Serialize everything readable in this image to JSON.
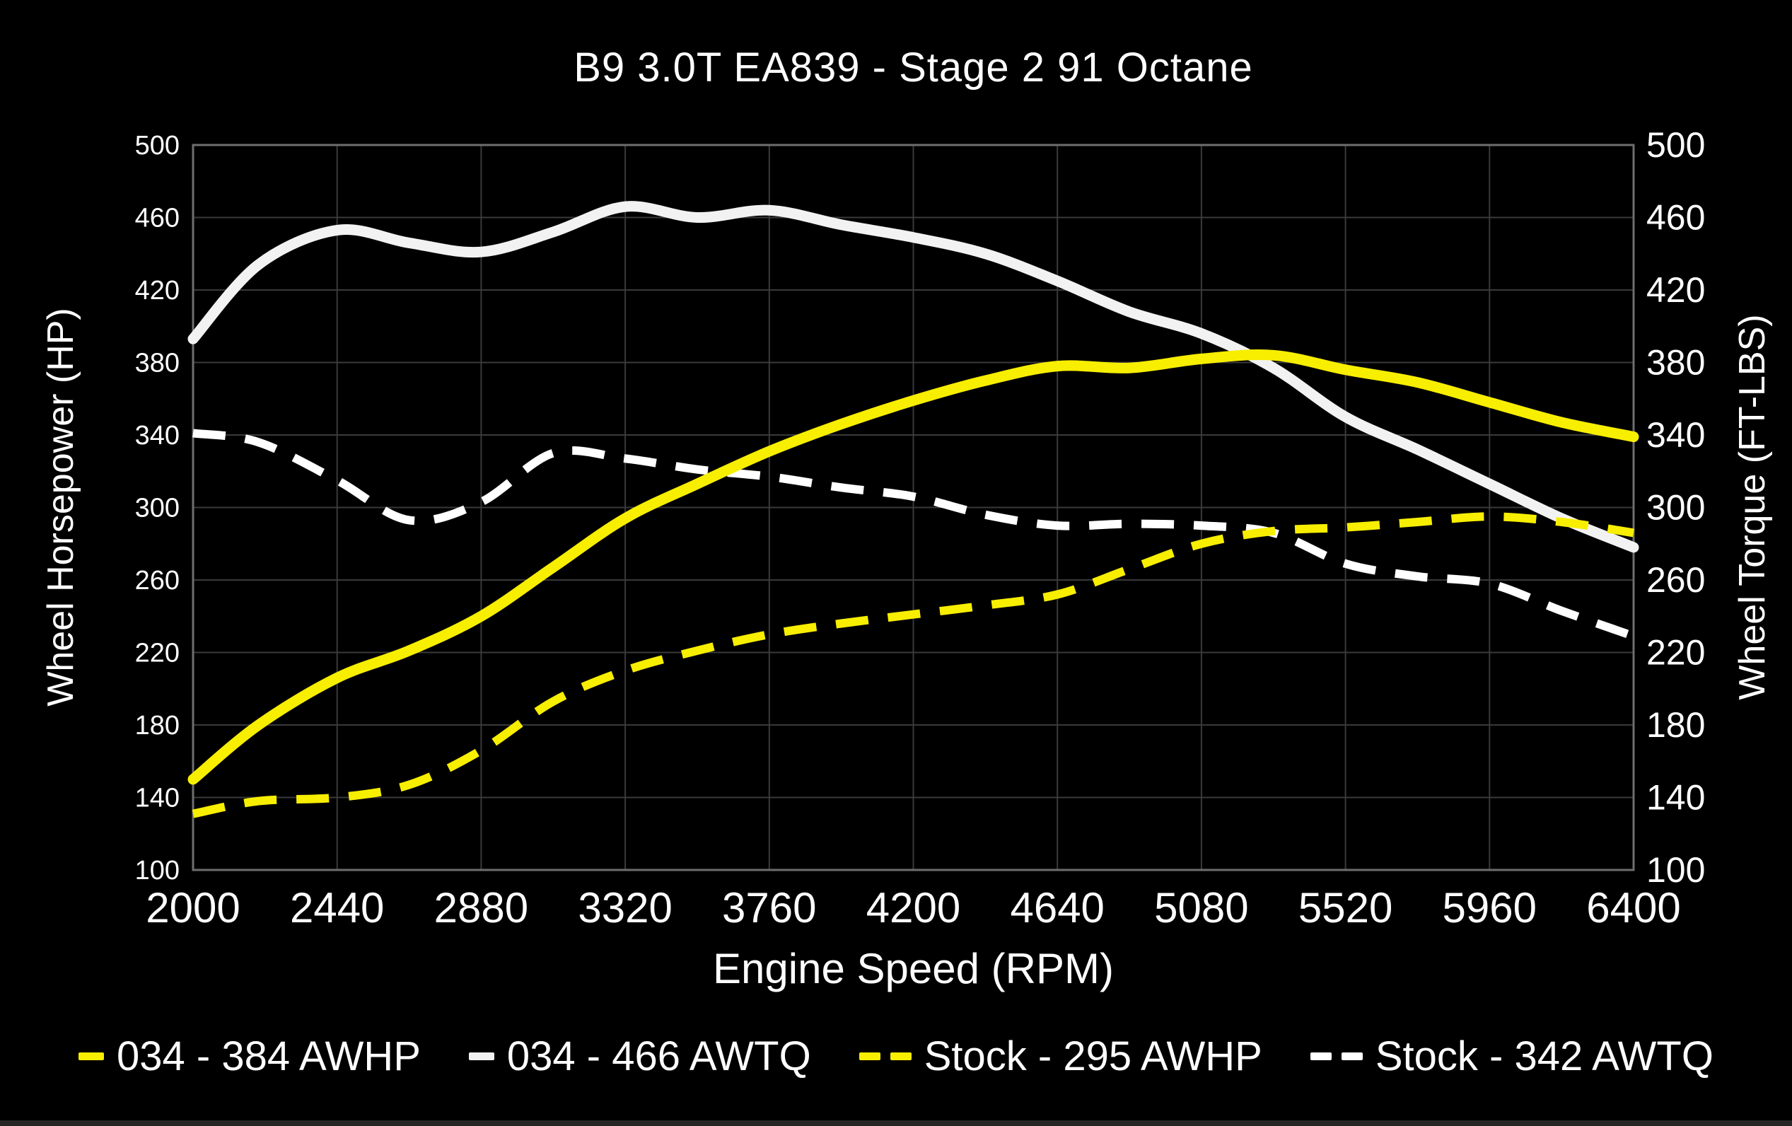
{
  "page": {
    "background": "#000000",
    "text_color": "#ffffff",
    "bottom_bar_color": "#262626"
  },
  "chart_data": {
    "type": "line",
    "title": "B9 3.0T EA839 - Stage 2 91 Octane",
    "xlabel": "Engine Speed (RPM)",
    "ylabel_left": "Wheel Horsepower (HP)",
    "ylabel_right": "Wheel Torque (FT-LBS)",
    "xlim": [
      2000,
      6400
    ],
    "ylim": [
      100,
      500
    ],
    "x_ticks": [
      2000,
      2440,
      2880,
      3320,
      3760,
      4200,
      4640,
      5080,
      5520,
      5960,
      6400
    ],
    "y_ticks_left": [
      100,
      140,
      180,
      220,
      260,
      300,
      340,
      380,
      420,
      460,
      500
    ],
    "y_ticks_right": [
      100,
      140,
      180,
      220,
      260,
      300,
      340,
      380,
      420,
      460,
      500
    ],
    "grid": true,
    "grid_color": "#3a3a3a",
    "border_color": "#6e6e6e",
    "legend_position": "bottom",
    "x": [
      2000,
      2200,
      2440,
      2660,
      2880,
      3100,
      3320,
      3540,
      3760,
      3980,
      4200,
      4420,
      4640,
      4860,
      5080,
      5300,
      5520,
      5740,
      5960,
      6180,
      6400
    ],
    "series": [
      {
        "name": "034 - 384 AWHP",
        "color": "#f7ee00",
        "style": "solid",
        "values": [
          150,
          180,
          206,
          221,
          240,
          267,
          294,
          313,
          331,
          346,
          359,
          370,
          378,
          377,
          382,
          384,
          376,
          369,
          358,
          347,
          339
        ]
      },
      {
        "name": "034 - 466 AWTQ",
        "color": "#f2f2f2",
        "style": "solid",
        "values": [
          393,
          434,
          453,
          446,
          441,
          452,
          466,
          460,
          464,
          456,
          449,
          440,
          425,
          408,
          396,
          377,
          350,
          332,
          313,
          294,
          278
        ]
      },
      {
        "name": "Stock - 295 AWHP",
        "color": "#f7ee00",
        "style": "dashed",
        "values": [
          131,
          138,
          140,
          147,
          166,
          193,
          210,
          221,
          230,
          236,
          241,
          246,
          252,
          266,
          280,
          287,
          289,
          292,
          295,
          292,
          286
        ]
      },
      {
        "name": "Stock - 342 AWTQ",
        "color": "#ffffff",
        "style": "dashed",
        "values": [
          341,
          336,
          315,
          293,
          303,
          330,
          327,
          321,
          317,
          311,
          306,
          296,
          290,
          291,
          290,
          286,
          269,
          262,
          258,
          243,
          229
        ]
      }
    ]
  }
}
